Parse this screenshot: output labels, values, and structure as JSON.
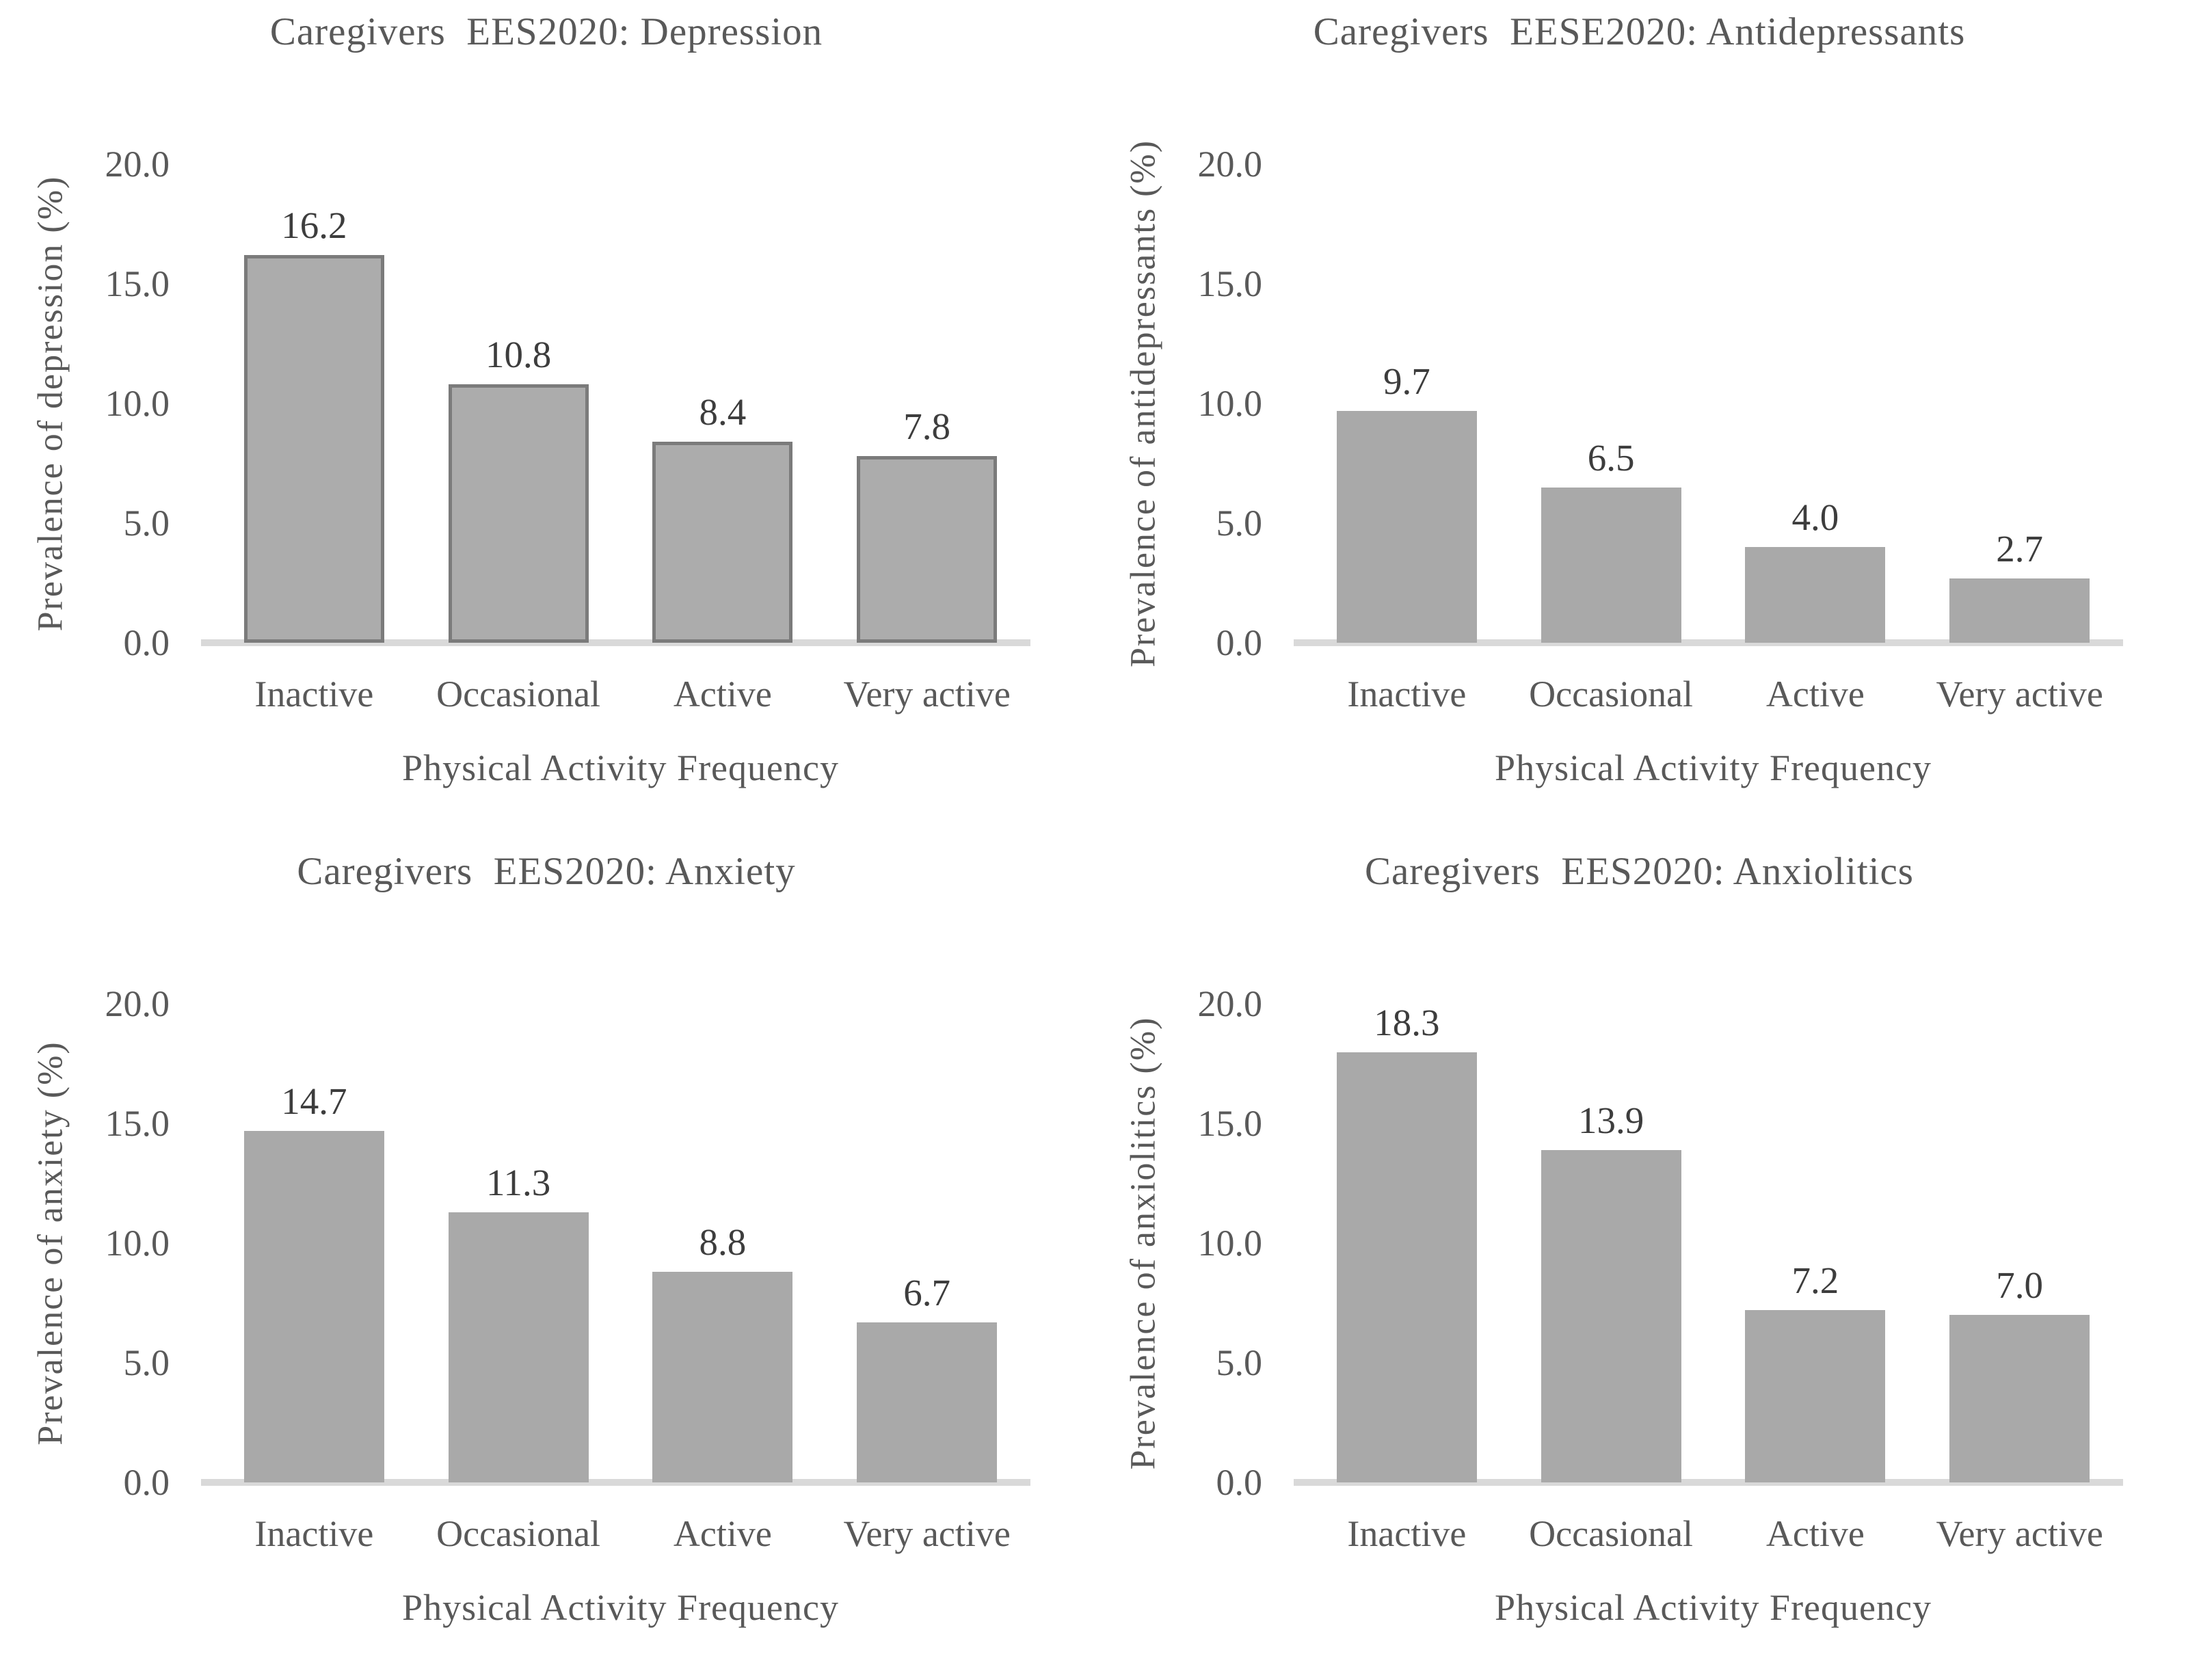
{
  "figure": {
    "background_color": "#ffffff",
    "layout": "2x2-grid",
    "text_color": "#595959",
    "value_label_color": "#3d3d3d",
    "baseline_color": "#d9d9d9"
  },
  "chart_data": [
    {
      "type": "bar",
      "title": "Caregivers  EES2020: Depression",
      "ylabel": "Prevalence of depression (%)",
      "xlabel": "Physical Activity Frequency",
      "categories": [
        "Inactive",
        "Occasional",
        "Active",
        "Very active"
      ],
      "values": [
        16.2,
        10.8,
        8.4,
        7.8
      ],
      "value_labels": [
        "16.2",
        "10.8",
        "8.4",
        "7.8"
      ],
      "ylim": [
        0,
        20
      ],
      "yticks": [
        0,
        5,
        10,
        15,
        20
      ],
      "ytick_labels": [
        "0.0",
        "5.0",
        "10.0",
        "15.0",
        "20.0"
      ],
      "bar_color": "#acacac",
      "bar_border_color": "#7b7b7b",
      "grid": false,
      "legend": "none"
    },
    {
      "type": "bar",
      "title": "Caregivers  EESE2020: Antidepressants",
      "ylabel": "Prevalence of antidepressants (%)",
      "xlabel": "Physical Activity Frequency",
      "categories": [
        "Inactive",
        "Occasional",
        "Active",
        "Very active"
      ],
      "values": [
        9.7,
        6.5,
        4.0,
        2.7
      ],
      "value_labels": [
        "9.7",
        "6.5",
        "4.0",
        "2.7"
      ],
      "ylim": [
        0,
        20
      ],
      "yticks": [
        0,
        5,
        10,
        15,
        20
      ],
      "ytick_labels": [
        "0.0",
        "5.0",
        "10.0",
        "15.0",
        "20.0"
      ],
      "bar_color": "#a9a9a9",
      "bar_border_color": null,
      "grid": false,
      "legend": "none"
    },
    {
      "type": "bar",
      "title": "Caregivers  EES2020: Anxiety",
      "ylabel": "Prevalence of anxiety (%)",
      "xlabel": "Physical Activity Frequency",
      "categories": [
        "Inactive",
        "Occasional",
        "Active",
        "Very active"
      ],
      "values": [
        14.7,
        11.3,
        8.8,
        6.7
      ],
      "value_labels": [
        "14.7",
        "11.3",
        "8.8",
        "6.7"
      ],
      "ylim": [
        0,
        20
      ],
      "yticks": [
        0,
        5,
        10,
        15,
        20
      ],
      "ytick_labels": [
        "0.0",
        "5.0",
        "10.0",
        "15.0",
        "20.0"
      ],
      "bar_color": "#a9a9a9",
      "bar_border_color": null,
      "grid": false,
      "legend": "none"
    },
    {
      "type": "bar",
      "title": "Caregivers  EES2020: Anxiolitics",
      "ylabel": "Prevalence of anxiolitics (%)",
      "xlabel": "Physical Activity Frequency",
      "categories": [
        "Inactive",
        "Occasional",
        "Active",
        "Very active"
      ],
      "values": [
        18.3,
        13.9,
        7.2,
        7.0
      ],
      "value_labels": [
        "18.3",
        "13.9",
        "7.2",
        "7.0"
      ],
      "ylim": [
        0,
        20
      ],
      "yticks": [
        0,
        5,
        10,
        15,
        20
      ],
      "ytick_labels": [
        "0.0",
        "5.0",
        "10.0",
        "15.0",
        "20.0"
      ],
      "bar_color": "#a9a9a9",
      "bar_border_color": null,
      "grid": false,
      "legend": "none"
    }
  ]
}
